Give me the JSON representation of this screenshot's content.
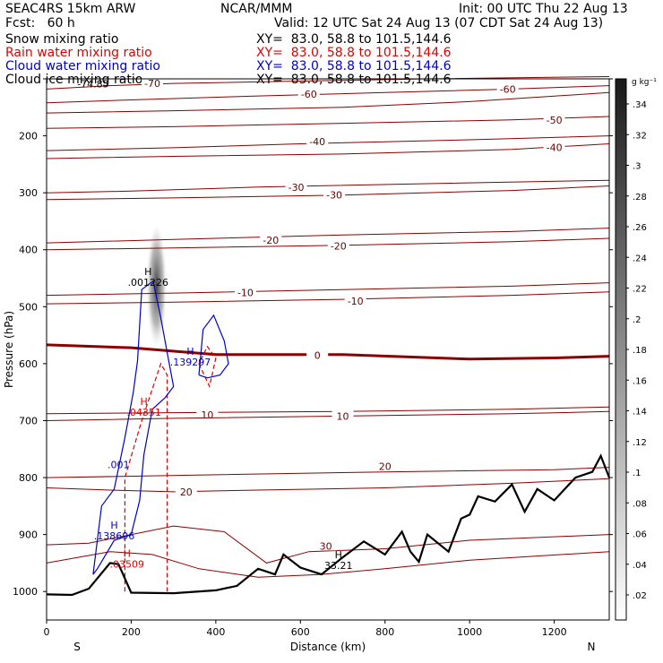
{
  "header": {
    "model": "SEAC4RS 15km ARW",
    "org": "NCAR/MMM",
    "init": "Init: 00 UTC Thu 22 Aug 13",
    "fcst": "Fcst:   60 h",
    "valid": "Valid: 12 UTC Sat 24 Aug 13 (07 CDT Sat 24 Aug 13)",
    "fields": [
      {
        "name": "Snow mixing ratio",
        "xy": "XY=  83.0, 58.8 to 101.5,144.6",
        "color": "#000000"
      },
      {
        "name": "Rain water mixing ratio",
        "xy": "XY=  83.0, 58.8 to 101.5,144.6",
        "color": "#e00000"
      },
      {
        "name": "Cloud water mixing ratio",
        "xy": "XY=  83.0, 58.8 to 101.5,144.6",
        "color": "#0000c8"
      },
      {
        "name": "Cloud ice mixing ratio",
        "xy": "XY=  83.0, 58.8 to 101.5,144.6",
        "color": "#000000"
      }
    ]
  },
  "chart_data": {
    "type": "cross-section contour",
    "xlabel": "Distance (km)",
    "ylabel": "Pressure (hPa)",
    "xlim": [
      0,
      1330
    ],
    "ylim": [
      1050,
      100
    ],
    "x_ticks": [
      0,
      200,
      400,
      600,
      800,
      1000,
      1200
    ],
    "y_ticks": [
      100,
      200,
      300,
      400,
      500,
      600,
      700,
      800,
      900,
      1000
    ],
    "y_tick_labels": [
      "",
      "200",
      "300",
      "400",
      "500",
      "600",
      "700",
      "800",
      "900",
      "1000"
    ],
    "x_end_labels": {
      "left": "S",
      "right": "N"
    },
    "colorbar": {
      "unit": "g kg⁻¹",
      "ticks": [
        ".02",
        ".04",
        ".06",
        ".08",
        ".1",
        ".12",
        ".14",
        ".16",
        ".18",
        ".2",
        ".22",
        ".24",
        ".26",
        ".28",
        ".3",
        ".32",
        ".34"
      ]
    },
    "temperature_contours": [
      {
        "label": "-70",
        "points": [
          [
            0,
            118
          ],
          [
            150,
            112
          ],
          [
            300,
            108
          ],
          [
            600,
            104
          ],
          [
            900,
            100
          ],
          [
            1330,
            96
          ]
        ],
        "label_at": [
          250,
          108
        ]
      },
      {
        "label": "-60",
        "points": [
          [
            0,
            142
          ],
          [
            200,
            137
          ],
          [
            500,
            130
          ],
          [
            800,
            124
          ],
          [
            1100,
            118
          ],
          [
            1330,
            112
          ]
        ],
        "label_at": [
          620,
          127
        ]
      },
      {
        "label": "-60",
        "points": [
          [
            0,
            160
          ],
          [
            300,
            156
          ],
          [
            700,
            150
          ],
          [
            1000,
            140
          ],
          [
            1330,
            124
          ]
        ],
        "label_at": [
          1090,
          118
        ]
      },
      {
        "label": "-50",
        "points": [
          [
            0,
            187
          ],
          [
            300,
            184
          ],
          [
            700,
            178
          ],
          [
            1100,
            172
          ],
          [
            1330,
            166
          ]
        ],
        "label_at": [
          1200,
          172
        ]
      },
      {
        "label": "-40",
        "points": [
          [
            0,
            226
          ],
          [
            300,
            221
          ],
          [
            600,
            214
          ],
          [
            1000,
            207
          ],
          [
            1330,
            200
          ]
        ],
        "label_at": [
          640,
          210
        ]
      },
      {
        "label": "-40",
        "points": [
          [
            0,
            240
          ],
          [
            300,
            236
          ],
          [
            700,
            232
          ],
          [
            1100,
            224
          ],
          [
            1330,
            214
          ]
        ],
        "label_at": [
          1200,
          220
        ]
      },
      {
        "label": "-30",
        "points": [
          [
            0,
            300
          ],
          [
            200,
            297
          ],
          [
            500,
            290
          ],
          [
            900,
            284
          ],
          [
            1330,
            278
          ]
        ],
        "label_at": [
          590,
          290
        ]
      },
      {
        "label": "-30",
        "points": [
          [
            0,
            312
          ],
          [
            300,
            309
          ],
          [
            700,
            304
          ],
          [
            1100,
            296
          ],
          [
            1330,
            288
          ]
        ],
        "label_at": [
          680,
          304
        ]
      },
      {
        "label": "-20",
        "points": [
          [
            0,
            388
          ],
          [
            300,
            382
          ],
          [
            700,
            374
          ],
          [
            1100,
            368
          ],
          [
            1330,
            362
          ]
        ],
        "label_at": [
          530,
          383
        ]
      },
      {
        "label": "-20",
        "points": [
          [
            0,
            400
          ],
          [
            300,
            397
          ],
          [
            700,
            392
          ],
          [
            1100,
            386
          ],
          [
            1330,
            380
          ]
        ],
        "label_at": [
          690,
          393
        ]
      },
      {
        "label": "-10",
        "points": [
          [
            0,
            480
          ],
          [
            300,
            476
          ],
          [
            700,
            470
          ],
          [
            1100,
            464
          ],
          [
            1330,
            458
          ]
        ],
        "label_at": [
          470,
          475
        ]
      },
      {
        "label": "-10",
        "points": [
          [
            0,
            495
          ],
          [
            300,
            492
          ],
          [
            700,
            487
          ],
          [
            1100,
            480
          ],
          [
            1330,
            474
          ]
        ],
        "label_at": [
          730,
          490
        ]
      },
      {
        "label": "0",
        "points": [
          [
            0,
            567
          ],
          [
            200,
            572
          ],
          [
            400,
            584
          ],
          [
            700,
            584
          ],
          [
            1000,
            592
          ],
          [
            1200,
            590
          ],
          [
            1330,
            587
          ]
        ],
        "label_at": [
          640,
          585
        ],
        "bold": true
      },
      {
        "label": "10",
        "points": [
          [
            0,
            688
          ],
          [
            300,
            686
          ],
          [
            700,
            684
          ],
          [
            1100,
            680
          ],
          [
            1330,
            676
          ]
        ],
        "label_at": [
          380,
          690
        ]
      },
      {
        "label": "10",
        "points": [
          [
            0,
            700
          ],
          [
            300,
            696
          ],
          [
            700,
            692
          ],
          [
            1100,
            688
          ],
          [
            1330,
            684
          ]
        ],
        "label_at": [
          700,
          692
        ]
      },
      {
        "label": "20",
        "points": [
          [
            0,
            818
          ],
          [
            150,
            822
          ],
          [
            300,
            825
          ],
          [
            500,
            822
          ],
          [
            800,
            818
          ],
          [
            1100,
            810
          ],
          [
            1330,
            802
          ]
        ],
        "label_at": [
          330,
          825
        ]
      },
      {
        "label": "20",
        "points": [
          [
            0,
            800
          ],
          [
            400,
            795
          ],
          [
            800,
            790
          ],
          [
            1200,
            786
          ],
          [
            1330,
            782
          ]
        ],
        "label_at": [
          800,
          780
        ]
      },
      {
        "label": "30",
        "points": [
          [
            0,
            918
          ],
          [
            100,
            915
          ],
          [
            300,
            885
          ],
          [
            420,
            895
          ],
          [
            520,
            950
          ],
          [
            620,
            930
          ],
          [
            800,
            925
          ],
          [
            1000,
            910
          ],
          [
            1330,
            900
          ]
        ],
        "label_at": [
          660,
          920
        ]
      },
      {
        "label": "",
        "points": [
          [
            0,
            950
          ],
          [
            150,
            930
          ],
          [
            250,
            935
          ],
          [
            360,
            960
          ],
          [
            500,
            975
          ],
          [
            650,
            970
          ],
          [
            800,
            960
          ],
          [
            1000,
            945
          ],
          [
            1330,
            930
          ]
        ],
        "label_at": [
          0,
          0
        ]
      }
    ],
    "terrain": [
      [
        0,
        1005
      ],
      [
        60,
        1006
      ],
      [
        100,
        995
      ],
      [
        150,
        950
      ],
      [
        170,
        952
      ],
      [
        200,
        1002
      ],
      [
        300,
        1003
      ],
      [
        400,
        998
      ],
      [
        450,
        990
      ],
      [
        500,
        960
      ],
      [
        540,
        970
      ],
      [
        560,
        935
      ],
      [
        600,
        958
      ],
      [
        650,
        970
      ],
      [
        700,
        940
      ],
      [
        750,
        912
      ],
      [
        800,
        935
      ],
      [
        840,
        895
      ],
      [
        860,
        930
      ],
      [
        880,
        948
      ],
      [
        900,
        900
      ],
      [
        950,
        930
      ],
      [
        980,
        872
      ],
      [
        1000,
        865
      ],
      [
        1020,
        833
      ],
      [
        1060,
        842
      ],
      [
        1100,
        812
      ],
      [
        1130,
        860
      ],
      [
        1160,
        820
      ],
      [
        1200,
        840
      ],
      [
        1250,
        800
      ],
      [
        1290,
        790
      ],
      [
        1310,
        762
      ],
      [
        1330,
        800
      ]
    ],
    "rain_water_contours": [
      {
        "points": [
          [
            185,
            1000
          ],
          [
            185,
            800
          ],
          [
            225,
            700
          ],
          [
            270,
            600
          ],
          [
            285,
            620
          ],
          [
            285,
            1000
          ]
        ]
      },
      {
        "points": [
          [
            360,
            600
          ],
          [
            385,
            640
          ],
          [
            400,
            590
          ],
          [
            380,
            570
          ],
          [
            360,
            600
          ]
        ]
      }
    ],
    "cloud_water_contours": [
      {
        "points": [
          [
            110,
            970
          ],
          [
            130,
            850
          ],
          [
            160,
            820
          ],
          [
            185,
            730
          ],
          [
            205,
            650
          ],
          [
            215,
            595
          ],
          [
            225,
            470
          ],
          [
            252,
            455
          ],
          [
            270,
            520
          ],
          [
            290,
            600
          ],
          [
            300,
            640
          ],
          [
            280,
            660
          ],
          [
            250,
            680
          ],
          [
            230,
            760
          ],
          [
            220,
            840
          ],
          [
            200,
            900
          ],
          [
            160,
            910
          ],
          [
            120,
            960
          ],
          [
            110,
            970
          ]
        ]
      },
      {
        "points": [
          [
            360,
            620
          ],
          [
            370,
            540
          ],
          [
            395,
            515
          ],
          [
            420,
            560
          ],
          [
            430,
            600
          ],
          [
            410,
            620
          ],
          [
            380,
            625
          ],
          [
            360,
            620
          ]
        ]
      }
    ],
    "cloud_ice_shading": {
      "x": 260,
      "p_top": 360,
      "p_bottom": 590,
      "max_value": ".34"
    },
    "annotations": [
      {
        "text": "H",
        "value": ".001226",
        "x": 240,
        "p": 460,
        "color": "#000000"
      },
      {
        "text": "H",
        "value": ".139297",
        "x": 340,
        "p": 600,
        "color": "#0000c8"
      },
      {
        "text": "H",
        "value": ".04351",
        "x": 230,
        "p": 688,
        "color": "#e00000"
      },
      {
        "text": "",
        "value": ".001",
        "x": 170,
        "p": 780,
        "color": "#0000c8"
      },
      {
        "text": "H",
        "value": ".138696",
        "x": 160,
        "p": 905,
        "color": "#0000c8"
      },
      {
        "text": "H",
        "value": ".03509",
        "x": 190,
        "p": 955,
        "color": "#e00000"
      },
      {
        "text": "H",
        "value": "33.21",
        "x": 690,
        "p": 957,
        "color": "#000000"
      },
      {
        "text": "",
        "value": "-74.85",
        "x": 110,
        "p": 112,
        "color": "#000000"
      }
    ]
  }
}
